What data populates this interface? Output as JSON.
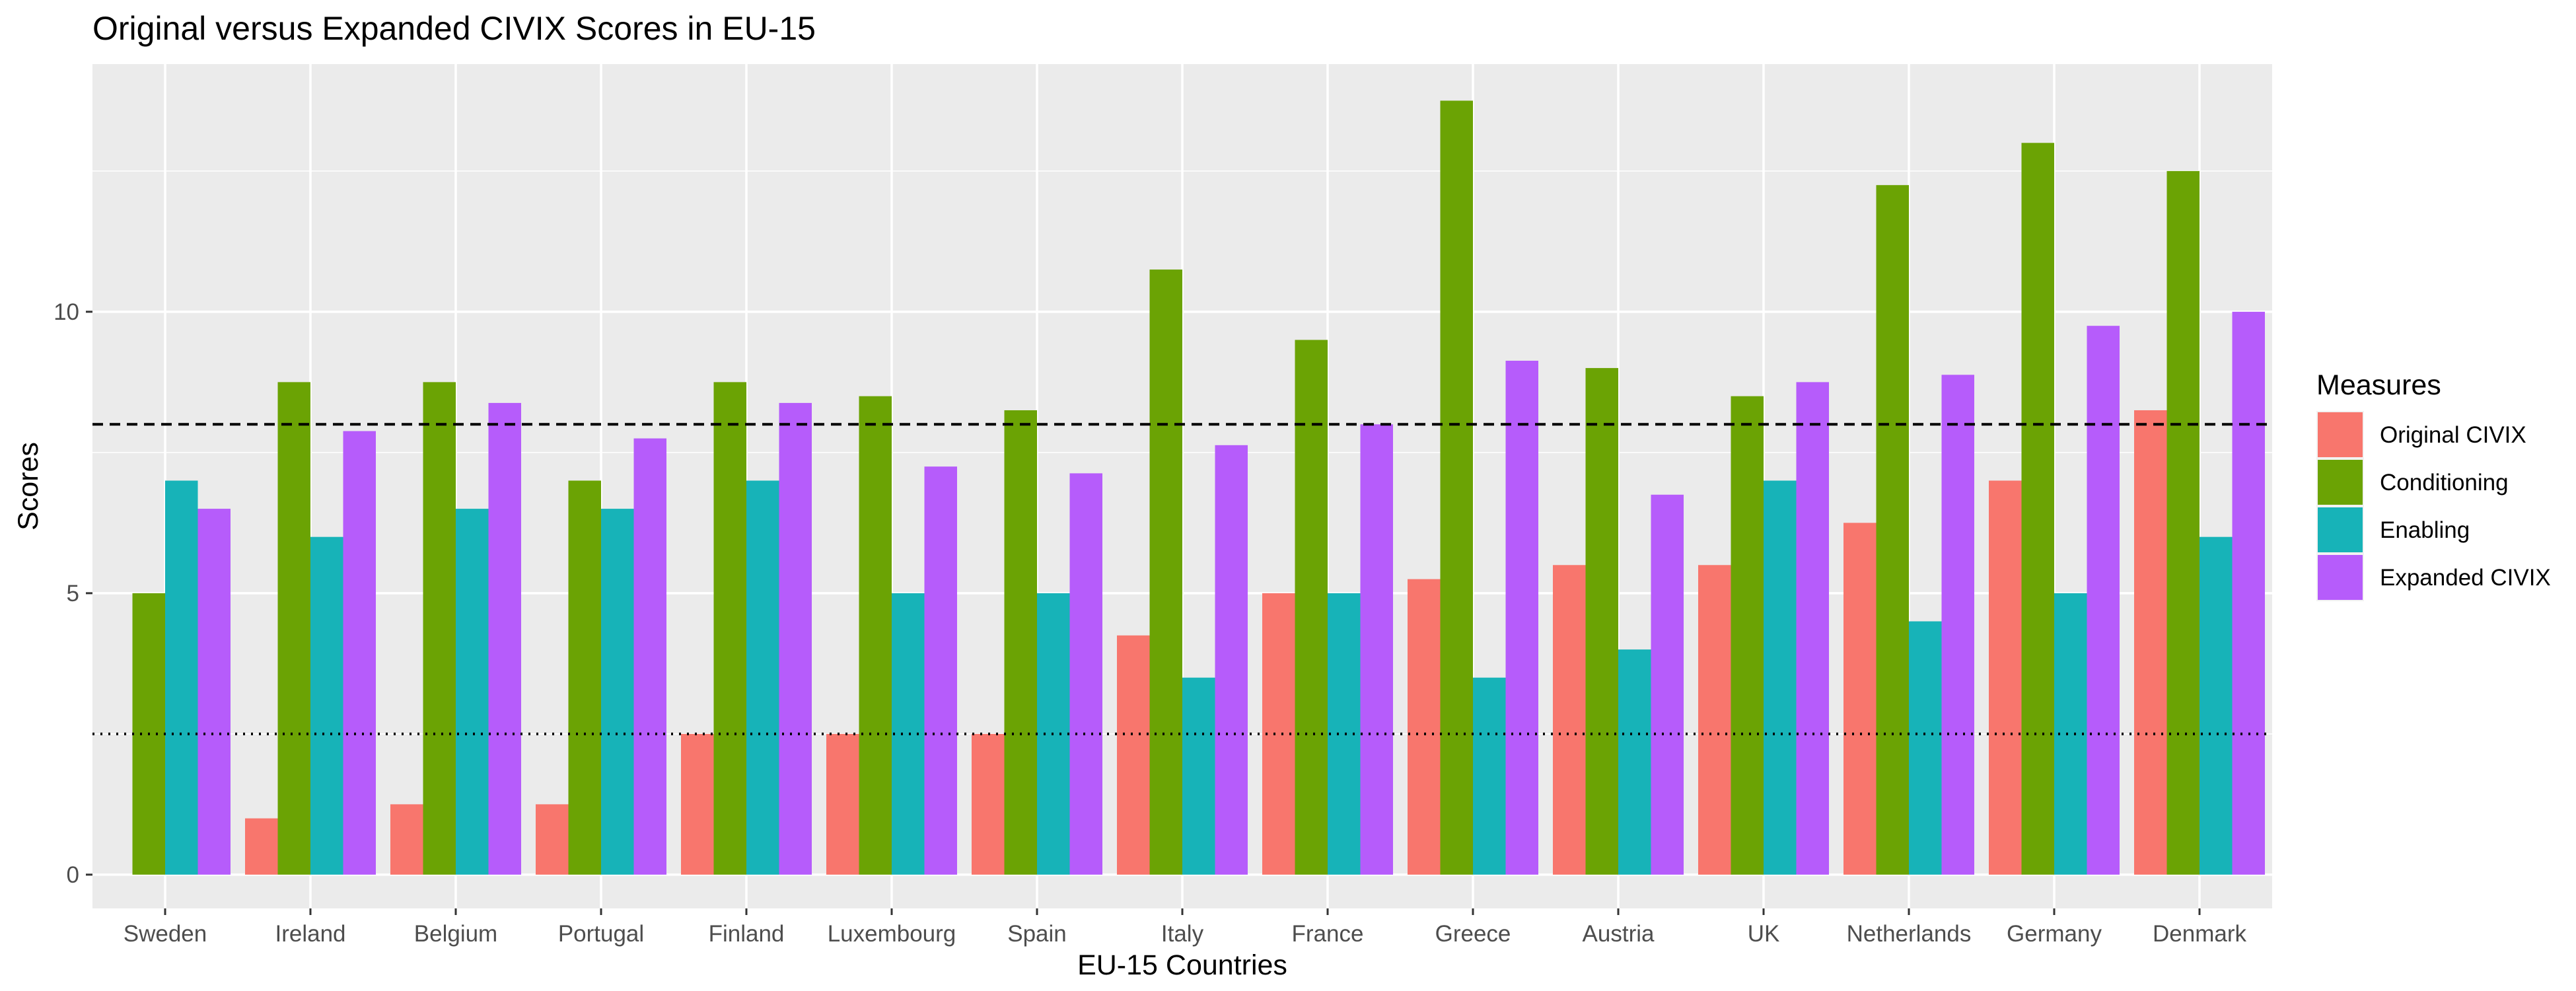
{
  "chart_data": {
    "type": "bar",
    "title": "Original versus Expanded CIVIX Scores in EU-15",
    "xlabel": "EU-15 Countries",
    "ylabel": "Scores",
    "ylim": [
      -0.6,
      14.4
    ],
    "yticks": [
      0,
      5,
      10
    ],
    "categories": [
      "Sweden",
      "Ireland",
      "Belgium",
      "Portugal",
      "Finland",
      "Luxembourg",
      "Spain",
      "Italy",
      "France",
      "Greece",
      "Austria",
      "UK",
      "Netherlands",
      "Germany",
      "Denmark"
    ],
    "series": [
      {
        "name": "Original CIVIX",
        "color": "#F8766D",
        "values": [
          0,
          1,
          1.25,
          1.25,
          2.5,
          2.5,
          2.5,
          4.25,
          5,
          5.25,
          5.5,
          5.5,
          6.25,
          7,
          8.25
        ]
      },
      {
        "name": "Conditioning",
        "color": "#6BA304",
        "values": [
          5,
          8.75,
          8.75,
          7,
          8.75,
          8.5,
          8.25,
          10.75,
          9.5,
          13.75,
          9,
          8.5,
          12.25,
          13,
          12.5
        ]
      },
      {
        "name": "Enabling",
        "color": "#17B3B8",
        "values": [
          7,
          6,
          6.5,
          6.5,
          7,
          5,
          5,
          3.5,
          5,
          3.5,
          4,
          7,
          4.5,
          5,
          6
        ]
      },
      {
        "name": "Expanded CIVIX",
        "color": "#B65CFB",
        "values": [
          6.5,
          7.88,
          8.38,
          7.75,
          8.38,
          7.25,
          7.13,
          7.63,
          8,
          9.13,
          6.75,
          8.75,
          8.88,
          9.75,
          10
        ]
      }
    ],
    "reference_lines": [
      {
        "value": 8,
        "style": "dashed"
      },
      {
        "value": 2.5,
        "style": "dotted"
      }
    ],
    "grid": true,
    "panel_color": "#EBEBEB",
    "legend": {
      "title": "Measures",
      "position": "right"
    }
  }
}
